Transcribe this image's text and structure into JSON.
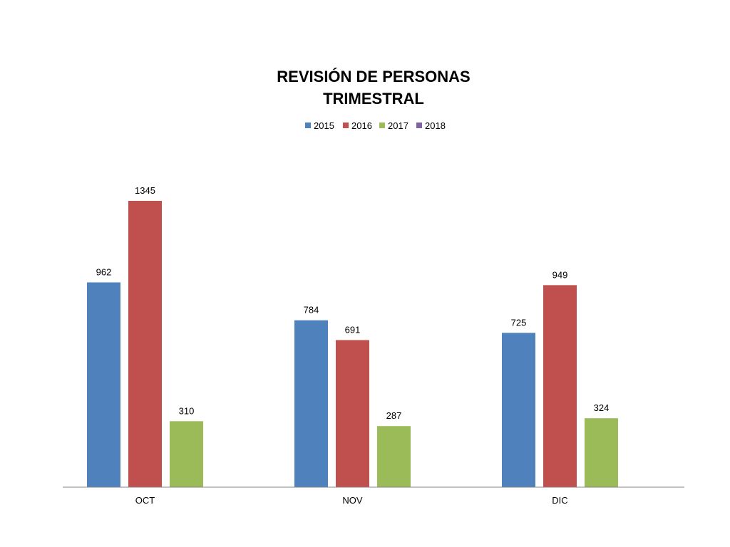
{
  "chart_data": {
    "type": "bar",
    "title_lines": [
      "REVISIÓN DE PERSONAS",
      "TRIMESTRAL"
    ],
    "xlabel": "",
    "ylabel": "",
    "categories": [
      "OCT",
      "NOV",
      "DIC"
    ],
    "series": [
      {
        "name": "2015",
        "color": "#4F81BD",
        "values": [
          962,
          784,
          725
        ]
      },
      {
        "name": "2016",
        "color": "#C0504D",
        "values": [
          1345,
          691,
          949
        ]
      },
      {
        "name": "2017",
        "color": "#9BBB59",
        "values": [
          310,
          287,
          324
        ]
      },
      {
        "name": "2018",
        "color": "#8064A2",
        "values": [
          null,
          null,
          null
        ]
      }
    ],
    "ylim": [
      0,
      1345
    ],
    "grid": false,
    "legend_position": "top-center",
    "data_labels": true
  }
}
